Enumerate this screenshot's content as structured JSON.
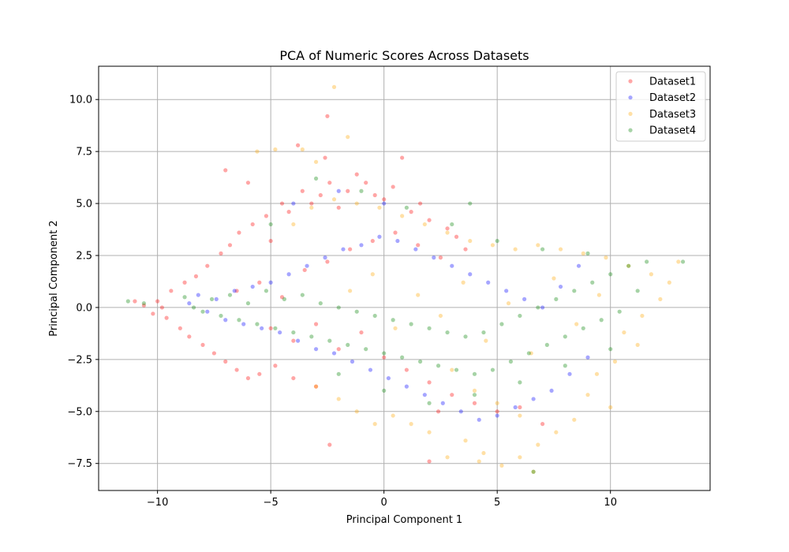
{
  "chart_data": {
    "type": "scatter",
    "title": "PCA of Numeric Scores Across Datasets",
    "xlabel": "Principal Component 1",
    "ylabel": "Principal Component 2",
    "xlim": [
      -12.6,
      14.4
    ],
    "ylim": [
      -8.8,
      11.6
    ],
    "xticks": [
      -10,
      -5,
      0,
      5,
      10
    ],
    "xtick_labels": [
      "−10",
      "−5",
      "0",
      "5",
      "10"
    ],
    "yticks": [
      -7.5,
      -5.0,
      -2.5,
      0.0,
      2.5,
      5.0,
      7.5,
      10.0
    ],
    "ytick_labels": [
      "−7.5",
      "−5.0",
      "−2.5",
      "0.0",
      "2.5",
      "5.0",
      "7.5",
      "10.0"
    ],
    "grid": true,
    "legend_position": "top-right",
    "series": [
      {
        "name": "Dataset1",
        "color": "#ff0000",
        "points": [
          [
            -11.0,
            0.3
          ],
          [
            -10.6,
            0.1
          ],
          [
            -10.2,
            -0.3
          ],
          [
            -10.0,
            0.3
          ],
          [
            -9.8,
            0.0
          ],
          [
            -9.6,
            -0.5
          ],
          [
            -9.4,
            0.8
          ],
          [
            -9.0,
            -1.0
          ],
          [
            -8.8,
            1.2
          ],
          [
            -8.6,
            -1.4
          ],
          [
            -8.3,
            1.5
          ],
          [
            -8.0,
            -1.8
          ],
          [
            -7.8,
            2.0
          ],
          [
            -7.5,
            -2.2
          ],
          [
            -7.2,
            2.6
          ],
          [
            -7.0,
            -2.6
          ],
          [
            -6.8,
            3.0
          ],
          [
            -6.5,
            -3.0
          ],
          [
            -6.4,
            3.6
          ],
          [
            -6.0,
            -3.4
          ],
          [
            -5.8,
            4.0
          ],
          [
            -5.5,
            -3.2
          ],
          [
            -5.2,
            4.4
          ],
          [
            -5.0,
            3.2
          ],
          [
            -4.8,
            -2.8
          ],
          [
            -4.5,
            5.0
          ],
          [
            -4.2,
            4.6
          ],
          [
            -4.0,
            -3.4
          ],
          [
            -3.6,
            5.6
          ],
          [
            -3.2,
            5.0
          ],
          [
            -3.0,
            -3.8
          ],
          [
            -2.8,
            5.4
          ],
          [
            -2.4,
            6.0
          ],
          [
            -2.0,
            4.8
          ],
          [
            -1.6,
            5.6
          ],
          [
            -1.2,
            6.4
          ],
          [
            -0.8,
            6.0
          ],
          [
            -0.4,
            5.4
          ],
          [
            0.0,
            5.2
          ],
          [
            0.4,
            5.8
          ],
          [
            0.8,
            7.2
          ],
          [
            1.2,
            4.6
          ],
          [
            1.6,
            5.0
          ],
          [
            2.0,
            4.2
          ],
          [
            2.4,
            -5.0
          ],
          [
            2.8,
            3.8
          ],
          [
            3.2,
            3.4
          ],
          [
            3.6,
            2.8
          ],
          [
            -7.0,
            6.6
          ],
          [
            -6.0,
            6.0
          ],
          [
            -2.6,
            7.2
          ],
          [
            -2.4,
            -6.6
          ],
          [
            -3.8,
            7.8
          ],
          [
            -2.5,
            9.2
          ],
          [
            -6.5,
            0.8
          ],
          [
            -5.5,
            1.2
          ],
          [
            -4.5,
            0.5
          ],
          [
            -3.5,
            1.8
          ],
          [
            -2.5,
            2.2
          ],
          [
            -1.5,
            2.8
          ],
          [
            -0.5,
            3.2
          ],
          [
            0.5,
            3.6
          ],
          [
            1.5,
            3.0
          ],
          [
            2.5,
            2.4
          ],
          [
            -5.0,
            -1.0
          ],
          [
            -4.0,
            -1.6
          ],
          [
            -3.0,
            -0.8
          ],
          [
            -2.0,
            -2.0
          ],
          [
            -1.0,
            -1.2
          ],
          [
            0.0,
            -2.4
          ],
          [
            1.0,
            -3.0
          ],
          [
            2.0,
            -3.6
          ],
          [
            3.0,
            -4.2
          ],
          [
            4.0,
            -4.6
          ],
          [
            5.0,
            -5.0
          ],
          [
            6.0,
            -4.8
          ],
          [
            7.0,
            -5.6
          ],
          [
            2.0,
            -7.4
          ]
        ]
      },
      {
        "name": "Dataset2",
        "color": "#0000ff",
        "points": [
          [
            -8.6,
            0.2
          ],
          [
            -8.2,
            0.6
          ],
          [
            -7.8,
            -0.2
          ],
          [
            -7.4,
            0.4
          ],
          [
            -7.0,
            -0.6
          ],
          [
            -6.6,
            0.8
          ],
          [
            -6.2,
            -0.8
          ],
          [
            -5.8,
            1.0
          ],
          [
            -5.4,
            -1.0
          ],
          [
            -5.0,
            1.2
          ],
          [
            -4.6,
            -1.2
          ],
          [
            -4.2,
            1.6
          ],
          [
            -3.8,
            -1.6
          ],
          [
            -3.4,
            2.0
          ],
          [
            -3.0,
            -2.0
          ],
          [
            -2.6,
            2.4
          ],
          [
            -2.2,
            -2.2
          ],
          [
            -1.8,
            2.8
          ],
          [
            -1.4,
            -2.6
          ],
          [
            -1.0,
            3.0
          ],
          [
            -0.6,
            -3.0
          ],
          [
            -0.2,
            3.4
          ],
          [
            0.2,
            -3.4
          ],
          [
            0.6,
            3.2
          ],
          [
            1.0,
            -3.8
          ],
          [
            1.4,
            2.8
          ],
          [
            1.8,
            -4.2
          ],
          [
            2.2,
            2.4
          ],
          [
            2.6,
            -4.6
          ],
          [
            3.0,
            2.0
          ],
          [
            3.4,
            -5.0
          ],
          [
            3.8,
            1.6
          ],
          [
            4.2,
            -5.4
          ],
          [
            4.6,
            1.2
          ],
          [
            5.0,
            -5.2
          ],
          [
            5.4,
            0.8
          ],
          [
            5.8,
            -4.8
          ],
          [
            6.2,
            0.4
          ],
          [
            6.6,
            -4.4
          ],
          [
            7.0,
            0.0
          ],
          [
            7.4,
            -4.0
          ],
          [
            7.8,
            1.0
          ],
          [
            8.2,
            -3.2
          ],
          [
            8.6,
            2.0
          ],
          [
            9.0,
            -2.4
          ],
          [
            -4.0,
            5.0
          ],
          [
            -2.0,
            5.6
          ],
          [
            0.0,
            5.0
          ]
        ]
      },
      {
        "name": "Dataset3",
        "color": "#ffa500",
        "points": [
          [
            -5.6,
            7.5
          ],
          [
            -2.2,
            10.6
          ],
          [
            -1.6,
            8.2
          ],
          [
            -4.8,
            7.6
          ],
          [
            -3.6,
            7.6
          ],
          [
            -3.0,
            7.0
          ],
          [
            -4.0,
            4.0
          ],
          [
            -3.2,
            4.8
          ],
          [
            -2.2,
            5.2
          ],
          [
            -1.2,
            5.0
          ],
          [
            -0.2,
            4.8
          ],
          [
            0.8,
            4.4
          ],
          [
            1.8,
            4.0
          ],
          [
            2.8,
            3.6
          ],
          [
            3.8,
            3.2
          ],
          [
            4.8,
            3.0
          ],
          [
            5.8,
            2.8
          ],
          [
            6.8,
            3.0
          ],
          [
            7.8,
            2.8
          ],
          [
            8.8,
            2.6
          ],
          [
            9.8,
            2.4
          ],
          [
            10.8,
            2.0
          ],
          [
            11.8,
            1.6
          ],
          [
            12.6,
            1.2
          ],
          [
            13.0,
            2.2
          ],
          [
            12.2,
            0.4
          ],
          [
            11.4,
            -0.4
          ],
          [
            10.6,
            -1.2
          ],
          [
            11.2,
            -1.8
          ],
          [
            10.2,
            -2.6
          ],
          [
            9.4,
            -3.2
          ],
          [
            9.0,
            -4.2
          ],
          [
            10.0,
            -4.8
          ],
          [
            8.4,
            -5.4
          ],
          [
            7.6,
            -6.0
          ],
          [
            6.8,
            -6.6
          ],
          [
            6.0,
            -7.2
          ],
          [
            5.2,
            -7.6
          ],
          [
            4.4,
            -7.0
          ],
          [
            3.6,
            -6.4
          ],
          [
            2.8,
            -7.2
          ],
          [
            2.0,
            -6.0
          ],
          [
            1.2,
            -5.6
          ],
          [
            0.4,
            -5.2
          ],
          [
            -0.4,
            -5.6
          ],
          [
            -1.2,
            -5.0
          ],
          [
            -2.0,
            -4.4
          ],
          [
            -3.0,
            -3.8
          ],
          [
            6.6,
            -7.9
          ],
          [
            4.2,
            -7.4
          ],
          [
            -1.5,
            0.8
          ],
          [
            -0.5,
            1.6
          ],
          [
            0.5,
            -1.0
          ],
          [
            1.5,
            0.6
          ],
          [
            2.5,
            -0.4
          ],
          [
            3.5,
            1.2
          ],
          [
            4.5,
            -1.6
          ],
          [
            5.5,
            0.2
          ],
          [
            6.5,
            -2.2
          ],
          [
            7.5,
            1.4
          ],
          [
            8.5,
            -0.8
          ],
          [
            9.5,
            0.6
          ],
          [
            3.0,
            -3.0
          ],
          [
            4.0,
            -4.0
          ],
          [
            5.0,
            -4.6
          ],
          [
            6.0,
            -5.2
          ]
        ]
      },
      {
        "name": "Dataset4",
        "color": "#008000",
        "points": [
          [
            -11.3,
            0.3
          ],
          [
            -10.6,
            0.2
          ],
          [
            -8.8,
            0.5
          ],
          [
            -8.4,
            0.0
          ],
          [
            -8.0,
            -0.2
          ],
          [
            -7.6,
            0.4
          ],
          [
            -7.2,
            -0.4
          ],
          [
            -6.8,
            0.6
          ],
          [
            -6.4,
            -0.6
          ],
          [
            -6.0,
            0.2
          ],
          [
            -5.6,
            -0.8
          ],
          [
            -5.2,
            0.8
          ],
          [
            -4.8,
            -1.0
          ],
          [
            -4.4,
            0.4
          ],
          [
            -4.0,
            -1.2
          ],
          [
            -3.6,
            0.6
          ],
          [
            -3.2,
            -1.4
          ],
          [
            -2.8,
            0.2
          ],
          [
            -2.4,
            -1.6
          ],
          [
            -2.0,
            0.0
          ],
          [
            -1.6,
            -1.8
          ],
          [
            -1.2,
            -0.2
          ],
          [
            -0.8,
            -2.0
          ],
          [
            -0.4,
            -0.4
          ],
          [
            0.0,
            -2.2
          ],
          [
            0.4,
            -0.6
          ],
          [
            0.8,
            -2.4
          ],
          [
            1.2,
            -0.8
          ],
          [
            1.6,
            -2.6
          ],
          [
            2.0,
            -1.0
          ],
          [
            2.4,
            -2.8
          ],
          [
            2.8,
            -1.2
          ],
          [
            3.2,
            -3.0
          ],
          [
            3.6,
            -1.4
          ],
          [
            4.0,
            -3.2
          ],
          [
            4.4,
            -1.2
          ],
          [
            4.8,
            -3.0
          ],
          [
            5.2,
            -0.8
          ],
          [
            5.6,
            -2.6
          ],
          [
            6.0,
            -0.4
          ],
          [
            6.4,
            -2.2
          ],
          [
            6.8,
            0.0
          ],
          [
            7.2,
            -1.8
          ],
          [
            7.6,
            0.4
          ],
          [
            8.0,
            -1.4
          ],
          [
            8.4,
            0.8
          ],
          [
            8.8,
            -1.0
          ],
          [
            9.2,
            1.2
          ],
          [
            9.6,
            -0.6
          ],
          [
            10.0,
            1.6
          ],
          [
            10.4,
            -0.2
          ],
          [
            10.8,
            2.0
          ],
          [
            11.2,
            0.8
          ],
          [
            11.6,
            2.2
          ],
          [
            3.8,
            5.0
          ],
          [
            -5.0,
            4.0
          ],
          [
            -3.0,
            6.2
          ],
          [
            -1.0,
            5.6
          ],
          [
            1.0,
            4.8
          ],
          [
            3.0,
            4.0
          ],
          [
            5.0,
            3.2
          ],
          [
            7.0,
            2.8
          ],
          [
            9.0,
            2.6
          ],
          [
            -2.0,
            -3.2
          ],
          [
            0.0,
            -4.0
          ],
          [
            2.0,
            -4.6
          ],
          [
            4.0,
            -4.2
          ],
          [
            6.0,
            -3.6
          ],
          [
            8.0,
            -2.8
          ],
          [
            10.0,
            -2.0
          ],
          [
            13.2,
            2.2
          ],
          [
            6.6,
            -7.9
          ]
        ]
      }
    ]
  }
}
